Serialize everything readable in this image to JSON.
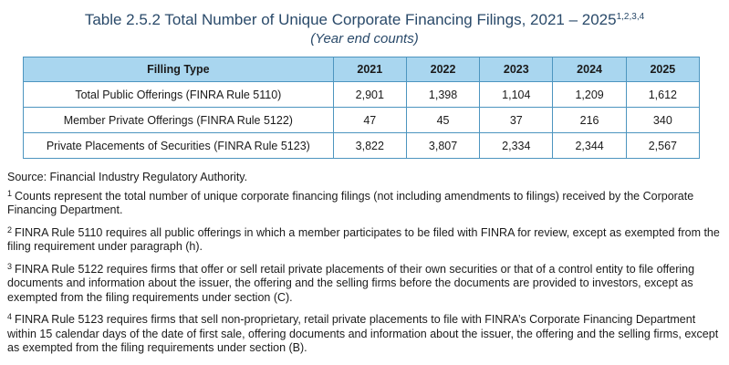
{
  "title": {
    "main": "Table 2.5.2 Total Number of Unique Corporate Financing Filings, 2021 – 2025",
    "superscript": "1,2,3,4",
    "subtitle": "(Year end counts)"
  },
  "table": {
    "header": [
      "Filling Type",
      "2021",
      "2022",
      "2023",
      "2024",
      "2025"
    ],
    "rows": [
      [
        "Total Public Offerings (FINRA Rule 5110)",
        "2,901",
        "1,398",
        "1,104",
        "1,209",
        "1,612"
      ],
      [
        "Member Private Offerings (FINRA Rule 5122)",
        "47",
        "45",
        "37",
        "216",
        "340"
      ],
      [
        "Private Placements of Securities (FINRA Rule 5123)",
        "3,822",
        "3,807",
        "2,334",
        "2,344",
        "2,567"
      ]
    ]
  },
  "source": "Source: Financial Industry Regulatory Authority.",
  "footnotes": [
    {
      "marker": "1",
      "text": "Counts represent the total number of unique corporate financing filings (not including amendments to filings) received by the Corporate Financing Department."
    },
    {
      "marker": "2",
      "text": "FINRA Rule 5110 requires all public offerings in which a member participates to be filed with FINRA for review, except as exempted from the filing requirement under paragraph (h)."
    },
    {
      "marker": "3",
      "text": "FINRA Rule 5122 requires firms that offer or sell retail private placements of their own securities or that of a control entity to file offering documents and information about the issuer, the offering and the selling firms before the documents are provided to investors, except as exempted from the filing requirements under section (C)."
    },
    {
      "marker": "4",
      "text": "FINRA Rule 5123 requires firms that sell non-proprietary, retail private placements to file with FINRA’s Corporate Financing Department within 15 calendar days of the date of first sale, offering documents and information about the issuer, the offering and the selling firms, except as exempted from the filing requirements under section (B)."
    }
  ]
}
